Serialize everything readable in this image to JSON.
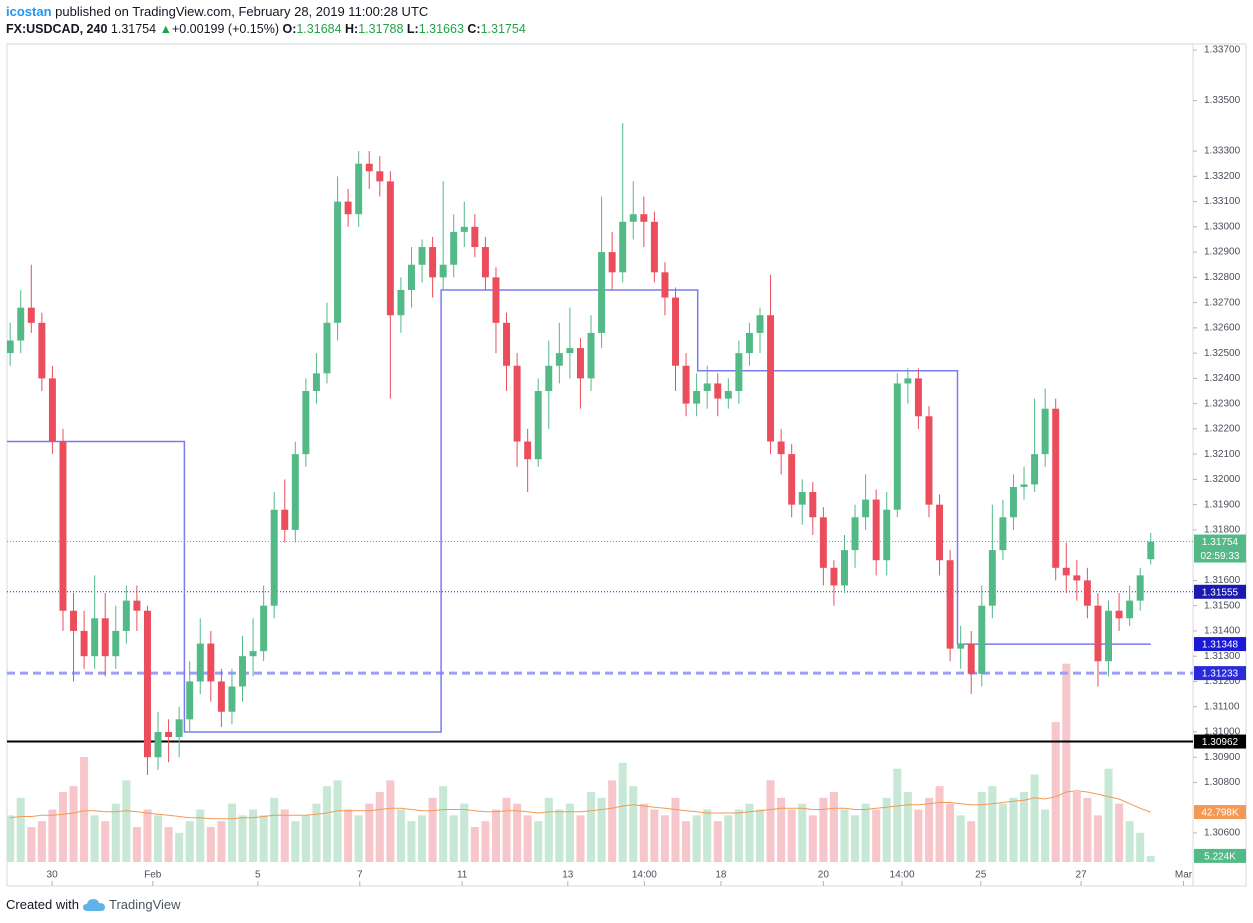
{
  "header": {
    "author": "icostan",
    "published": "published on TradingView.com, February 28, 2019 11:00:28 UTC",
    "symbol": "FX:USDCAD, 240",
    "arrow": "▲",
    "change": "+0.00199 (+0.15%)",
    "o_label": "O:",
    "h_label": "H:",
    "l_label": "L:",
    "c_label": "C:"
  },
  "chart_data": {
    "type": "candlestick",
    "up_color": "#53b987",
    "down_color": "#eb4d5c",
    "volume_up_color": "#c6e8d4",
    "volume_down_color": "#f7c6cb",
    "ohlc": [
      [
        1.325,
        1.3262,
        1.3245,
        1.3255
      ],
      [
        1.3255,
        1.3275,
        1.325,
        1.3268
      ],
      [
        1.3268,
        1.3285,
        1.3258,
        1.3262
      ],
      [
        1.3262,
        1.3266,
        1.3235,
        1.324
      ],
      [
        1.324,
        1.3245,
        1.321,
        1.3215
      ],
      [
        1.3215,
        1.322,
        1.314,
        1.3148
      ],
      [
        1.3148,
        1.3155,
        1.312,
        1.314
      ],
      [
        1.314,
        1.3148,
        1.3125,
        1.313
      ],
      [
        1.313,
        1.3162,
        1.3125,
        1.3145
      ],
      [
        1.3145,
        1.3155,
        1.3122,
        1.313
      ],
      [
        1.313,
        1.315,
        1.3125,
        1.314
      ],
      [
        1.314,
        1.3158,
        1.3135,
        1.3152
      ],
      [
        1.3152,
        1.3158,
        1.314,
        1.3148
      ],
      [
        1.3148,
        1.315,
        1.3083,
        1.309
      ],
      [
        1.309,
        1.3108,
        1.3085,
        1.31
      ],
      [
        1.31,
        1.3105,
        1.3088,
        1.3098
      ],
      [
        1.3098,
        1.311,
        1.309,
        1.3105
      ],
      [
        1.3105,
        1.3128,
        1.31,
        1.312
      ],
      [
        1.312,
        1.3145,
        1.3115,
        1.3135
      ],
      [
        1.3135,
        1.314,
        1.3112,
        1.312
      ],
      [
        1.312,
        1.3125,
        1.3102,
        1.3108
      ],
      [
        1.3108,
        1.3125,
        1.3103,
        1.3118
      ],
      [
        1.3118,
        1.3138,
        1.3112,
        1.313
      ],
      [
        1.313,
        1.3145,
        1.3122,
        1.3132
      ],
      [
        1.3132,
        1.3158,
        1.3128,
        1.315
      ],
      [
        1.315,
        1.3195,
        1.3145,
        1.3188
      ],
      [
        1.3188,
        1.32,
        1.3175,
        1.318
      ],
      [
        1.318,
        1.3215,
        1.3175,
        1.321
      ],
      [
        1.321,
        1.324,
        1.3205,
        1.3235
      ],
      [
        1.3235,
        1.325,
        1.323,
        1.3242
      ],
      [
        1.3242,
        1.327,
        1.3238,
        1.3262
      ],
      [
        1.3262,
        1.332,
        1.3255,
        1.331
      ],
      [
        1.331,
        1.3315,
        1.33,
        1.3305
      ],
      [
        1.3305,
        1.333,
        1.33,
        1.3325
      ],
      [
        1.3325,
        1.333,
        1.3315,
        1.3322
      ],
      [
        1.3322,
        1.3328,
        1.3312,
        1.3318
      ],
      [
        1.3318,
        1.3322,
        1.3232,
        1.3265
      ],
      [
        1.3265,
        1.328,
        1.3258,
        1.3275
      ],
      [
        1.3275,
        1.3292,
        1.3268,
        1.3285
      ],
      [
        1.3285,
        1.3295,
        1.3278,
        1.3292
      ],
      [
        1.3292,
        1.3296,
        1.3272,
        1.328
      ],
      [
        1.328,
        1.3318,
        1.3275,
        1.3285
      ],
      [
        1.3285,
        1.3305,
        1.328,
        1.3298
      ],
      [
        1.3298,
        1.331,
        1.3292,
        1.33
      ],
      [
        1.33,
        1.3305,
        1.3288,
        1.3292
      ],
      [
        1.3292,
        1.3296,
        1.3275,
        1.328
      ],
      [
        1.328,
        1.3284,
        1.325,
        1.3262
      ],
      [
        1.3262,
        1.3266,
        1.3235,
        1.3245
      ],
      [
        1.3245,
        1.325,
        1.3205,
        1.3215
      ],
      [
        1.3215,
        1.322,
        1.3195,
        1.3208
      ],
      [
        1.3208,
        1.324,
        1.3205,
        1.3235
      ],
      [
        1.3235,
        1.3255,
        1.322,
        1.3245
      ],
      [
        1.3245,
        1.3262,
        1.3238,
        1.325
      ],
      [
        1.325,
        1.3268,
        1.324,
        1.3252
      ],
      [
        1.3252,
        1.3256,
        1.3228,
        1.324
      ],
      [
        1.324,
        1.3265,
        1.3235,
        1.3258
      ],
      [
        1.3258,
        1.3312,
        1.3252,
        1.329
      ],
      [
        1.329,
        1.3298,
        1.3275,
        1.3282
      ],
      [
        1.3282,
        1.3341,
        1.3278,
        1.3302
      ],
      [
        1.3302,
        1.3318,
        1.3295,
        1.3305
      ],
      [
        1.3305,
        1.3312,
        1.3292,
        1.3302
      ],
      [
        1.3302,
        1.3306,
        1.3278,
        1.3282
      ],
      [
        1.3282,
        1.3286,
        1.3265,
        1.3272
      ],
      [
        1.3272,
        1.3276,
        1.3235,
        1.3245
      ],
      [
        1.3245,
        1.325,
        1.3225,
        1.323
      ],
      [
        1.323,
        1.3242,
        1.3225,
        1.3235
      ],
      [
        1.3235,
        1.3245,
        1.3228,
        1.3238
      ],
      [
        1.3238,
        1.3242,
        1.3225,
        1.3232
      ],
      [
        1.3232,
        1.324,
        1.3228,
        1.3235
      ],
      [
        1.3235,
        1.3255,
        1.323,
        1.325
      ],
      [
        1.325,
        1.3262,
        1.3245,
        1.3258
      ],
      [
        1.3258,
        1.3268,
        1.325,
        1.3265
      ],
      [
        1.3265,
        1.3281,
        1.321,
        1.3215
      ],
      [
        1.3215,
        1.322,
        1.3202,
        1.321
      ],
      [
        1.321,
        1.3214,
        1.3185,
        1.319
      ],
      [
        1.319,
        1.32,
        1.3182,
        1.3195
      ],
      [
        1.3195,
        1.3199,
        1.3178,
        1.3185
      ],
      [
        1.3185,
        1.3189,
        1.3158,
        1.3165
      ],
      [
        1.3165,
        1.3168,
        1.315,
        1.3158
      ],
      [
        1.3158,
        1.3178,
        1.3155,
        1.3172
      ],
      [
        1.3172,
        1.319,
        1.3165,
        1.3185
      ],
      [
        1.3185,
        1.3202,
        1.318,
        1.3192
      ],
      [
        1.3192,
        1.3196,
        1.3162,
        1.3168
      ],
      [
        1.3168,
        1.3195,
        1.3162,
        1.3188
      ],
      [
        1.3188,
        1.3242,
        1.3185,
        1.3238
      ],
      [
        1.3238,
        1.3244,
        1.323,
        1.324
      ],
      [
        1.324,
        1.3244,
        1.322,
        1.3225
      ],
      [
        1.3225,
        1.3229,
        1.3185,
        1.319
      ],
      [
        1.319,
        1.3194,
        1.3162,
        1.3168
      ],
      [
        1.3168,
        1.3172,
        1.3128,
        1.3133
      ],
      [
        1.3133,
        1.3142,
        1.3125,
        1.3135
      ],
      [
        1.3135,
        1.314,
        1.3115,
        1.3123
      ],
      [
        1.3123,
        1.3158,
        1.3118,
        1.315
      ],
      [
        1.315,
        1.319,
        1.3145,
        1.3172
      ],
      [
        1.3172,
        1.3192,
        1.3168,
        1.3185
      ],
      [
        1.3185,
        1.3202,
        1.318,
        1.3197
      ],
      [
        1.3197,
        1.3205,
        1.3192,
        1.3198
      ],
      [
        1.3198,
        1.3232,
        1.3195,
        1.321
      ],
      [
        1.321,
        1.3236,
        1.3205,
        1.3228
      ],
      [
        1.3228,
        1.3232,
        1.316,
        1.3165
      ],
      [
        1.3165,
        1.3175,
        1.3155,
        1.3162
      ],
      [
        1.3162,
        1.3168,
        1.3152,
        1.316
      ],
      [
        1.316,
        1.3165,
        1.3145,
        1.315
      ],
      [
        1.315,
        1.3155,
        1.3118,
        1.3128
      ],
      [
        1.3128,
        1.3152,
        1.3122,
        1.3148
      ],
      [
        1.3148,
        1.3155,
        1.314,
        1.3145
      ],
      [
        1.3145,
        1.3158,
        1.3142,
        1.3152
      ],
      [
        1.3152,
        1.3165,
        1.3148,
        1.3162
      ],
      [
        1.31684,
        1.31788,
        1.31663,
        1.31754
      ]
    ],
    "volume": [
      40000,
      55000,
      30000,
      35000,
      45000,
      60000,
      65000,
      90000,
      40000,
      35000,
      50000,
      70000,
      30000,
      45000,
      40000,
      30000,
      25000,
      35000,
      45000,
      30000,
      35000,
      50000,
      40000,
      45000,
      40000,
      55000,
      45000,
      35000,
      40000,
      50000,
      65000,
      70000,
      45000,
      40000,
      50000,
      60000,
      70000,
      45000,
      35000,
      40000,
      55000,
      65000,
      40000,
      50000,
      30000,
      35000,
      45000,
      55000,
      50000,
      40000,
      35000,
      55000,
      45000,
      50000,
      40000,
      60000,
      55000,
      70000,
      85000,
      65000,
      50000,
      45000,
      40000,
      55000,
      35000,
      40000,
      45000,
      35000,
      40000,
      45000,
      50000,
      45000,
      70000,
      55000,
      45000,
      50000,
      40000,
      55000,
      60000,
      45000,
      40000,
      50000,
      45000,
      55000,
      80000,
      60000,
      45000,
      55000,
      65000,
      50000,
      40000,
      35000,
      60000,
      65000,
      50000,
      55000,
      60000,
      75000,
      45000,
      120000,
      170000,
      60000,
      55000,
      40000,
      80000,
      50000,
      35000,
      25000,
      5224
    ],
    "volume_ma": [
      38000,
      39000,
      39000,
      40000,
      40000,
      41000,
      42000,
      44000,
      44000,
      43000,
      43000,
      44000,
      43000,
      42000,
      41000,
      40000,
      39000,
      38000,
      38000,
      37000,
      37000,
      37000,
      38000,
      38000,
      39000,
      40000,
      40000,
      40000,
      40000,
      41000,
      42000,
      44000,
      44000,
      44000,
      44000,
      45000,
      46000,
      46000,
      45000,
      44000,
      44000,
      45000,
      45000,
      45000,
      44000,
      43000,
      43000,
      44000,
      44000,
      43000,
      42000,
      43000,
      43000,
      43000,
      43000,
      44000,
      45000,
      46000,
      48000,
      49000,
      48000,
      47000,
      46000,
      45000,
      44000,
      43000,
      42000,
      42000,
      42000,
      42000,
      43000,
      44000,
      45000,
      46000,
      46000,
      46000,
      45000,
      45000,
      46000,
      46000,
      45000,
      45000,
      46000,
      47000,
      48000,
      49000,
      49000,
      50000,
      51000,
      51000,
      50000,
      49000,
      49000,
      50000,
      51000,
      52000,
      53000,
      55000,
      54000,
      56000,
      60000,
      61000,
      60000,
      58000,
      56000,
      54000,
      50000,
      46000,
      42798
    ],
    "volume_ma_color": "#f29a55",
    "volume_lim": [
      0,
      180000
    ],
    "volume_tags": [
      {
        "value": 42798,
        "label": "42.798K",
        "color": "#f29a55"
      },
      {
        "value": 5224,
        "label": "5.224K",
        "color": "#53b987"
      }
    ],
    "xlim": [
      -0.3,
      112
    ],
    "xticks": [
      {
        "value": 3.97,
        "label": "30"
      },
      {
        "value": 13.5,
        "label": "Feb"
      },
      {
        "value": 23.45,
        "label": "5"
      },
      {
        "value": 33.1,
        "label": "7"
      },
      {
        "value": 42.8,
        "label": "11"
      },
      {
        "value": 52.8,
        "label": "13"
      },
      {
        "value": 60.05,
        "label": "14:00"
      },
      {
        "value": 67.3,
        "label": "18"
      },
      {
        "value": 77,
        "label": "20"
      },
      {
        "value": 84.45,
        "label": "14:00"
      },
      {
        "value": 91.9,
        "label": "25"
      },
      {
        "value": 101.4,
        "label": "27"
      },
      {
        "value": 111.1,
        "label": "Mar"
      }
    ],
    "ylim": [
      1.30394,
      1.33724
    ],
    "yticks": [
      {
        "value": 1.337,
        "label": "1.33700"
      },
      {
        "value": 1.335,
        "label": "1.33500"
      },
      {
        "value": 1.333,
        "label": "1.33300"
      },
      {
        "value": 1.332,
        "label": "1.33200"
      },
      {
        "value": 1.331,
        "label": "1.33100"
      },
      {
        "value": 1.33,
        "label": "1.33000"
      },
      {
        "value": 1.329,
        "label": "1.32900"
      },
      {
        "value": 1.328,
        "label": "1.32800"
      },
      {
        "value": 1.327,
        "label": "1.32700"
      },
      {
        "value": 1.326,
        "label": "1.32600"
      },
      {
        "value": 1.325,
        "label": "1.32500"
      },
      {
        "value": 1.324,
        "label": "1.32400"
      },
      {
        "value": 1.323,
        "label": "1.32300"
      },
      {
        "value": 1.322,
        "label": "1.32200"
      },
      {
        "value": 1.321,
        "label": "1.32100"
      },
      {
        "value": 1.32,
        "label": "1.32000"
      },
      {
        "value": 1.319,
        "label": "1.31900"
      },
      {
        "value": 1.318,
        "label": "1.31800"
      },
      {
        "value": 1.316,
        "label": "1.31600"
      },
      {
        "value": 1.315,
        "label": "1.31500"
      },
      {
        "value": 1.314,
        "label": "1.31400"
      },
      {
        "value": 1.313,
        "label": "1.31300"
      },
      {
        "value": 1.312,
        "label": "1.31200"
      },
      {
        "value": 1.311,
        "label": "1.31100"
      },
      {
        "value": 1.31,
        "label": "1.31000"
      },
      {
        "value": 1.309,
        "label": "1.30900"
      },
      {
        "value": 1.308,
        "label": "1.30800"
      },
      {
        "value": 1.306,
        "label": "1.30600"
      }
    ],
    "step_line": {
      "color": "#7b7bef",
      "x": [
        -0.3,
        16.5,
        16.5,
        40.8,
        40.8,
        65.1,
        65.1,
        89.7,
        89.7,
        108
      ],
      "y": [
        1.3215,
        1.3215,
        1.31,
        1.31,
        1.3275,
        1.3275,
        1.3243,
        1.3243,
        1.31348,
        1.31348
      ],
      "tag_color": "#1a1ad6"
    },
    "hlines": [
      {
        "value": 1.31754,
        "color": "#53b987",
        "style": "dotted",
        "width": 1
      },
      {
        "value": 1.31555,
        "color": "#1a1ab0",
        "style": "dotted",
        "width": 1
      },
      {
        "value": 1.31233,
        "color": "#9e9ef7",
        "style": "dashed",
        "width": 3,
        "tag_color": "#2a2ad8"
      },
      {
        "value": 1.30962,
        "color": "#000000",
        "style": "solid",
        "width": 2
      }
    ],
    "countdown": "02:59:33"
  },
  "footer": {
    "text": "Created with",
    "brand": "TradingView"
  }
}
